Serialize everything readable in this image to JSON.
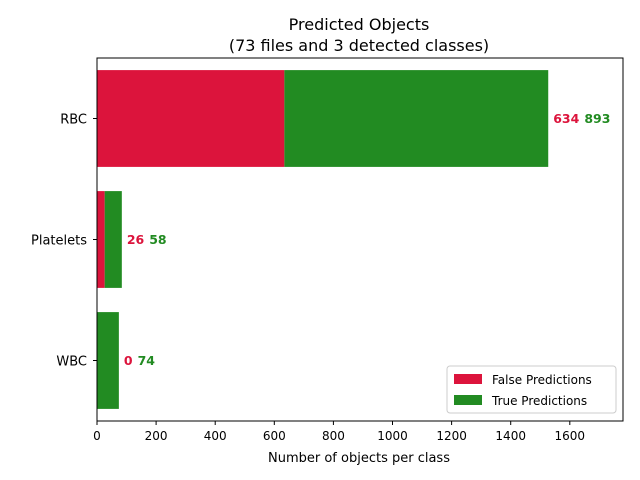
{
  "chart_data": {
    "type": "bar",
    "orientation": "horizontal",
    "stacked": true,
    "title": "Predicted Objects",
    "subtitle": "(73 files and 3 detected classes)",
    "xlabel": "Number of objects per class",
    "ylabel": "",
    "categories": [
      "RBC",
      "Platelets",
      "WBC"
    ],
    "series": [
      {
        "name": "False Predictions",
        "color": "#dc143c",
        "values": [
          634,
          26,
          0
        ]
      },
      {
        "name": "True Predictions",
        "color": "#228b22",
        "values": [
          893,
          58,
          74
        ]
      }
    ],
    "xlim": [
      0,
      1780
    ],
    "xticks": [
      0,
      200,
      400,
      600,
      800,
      1000,
      1200,
      1400,
      1600
    ],
    "grid": false,
    "legend_position": "lower right"
  }
}
